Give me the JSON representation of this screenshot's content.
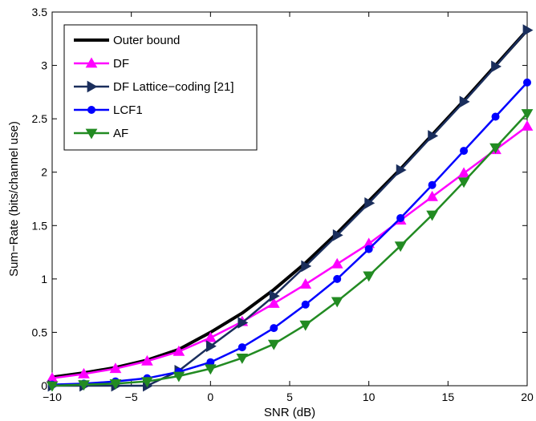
{
  "chart_data": {
    "type": "line",
    "xlabel": "SNR (dB)",
    "ylabel": "Sum−Rate (bits/channel use)",
    "xlim": [
      -10,
      20
    ],
    "ylim": [
      0,
      3.5
    ],
    "xticks": [
      -10,
      -5,
      0,
      5,
      10,
      15,
      20
    ],
    "xtick_labels": [
      "−10",
      "−5",
      "0",
      "5",
      "10",
      "15",
      "20"
    ],
    "yticks": [
      0,
      0.5,
      1,
      1.5,
      2,
      2.5,
      3,
      3.5
    ],
    "ytick_labels": [
      "0",
      "0.5",
      "1",
      "1.5",
      "2",
      "2.5",
      "3",
      "3.5"
    ],
    "grid": false,
    "legend_position": "top-left",
    "x": [
      -10,
      -8,
      -6,
      -4,
      -2,
      0,
      2,
      4,
      6,
      8,
      10,
      12,
      14,
      16,
      18,
      20
    ],
    "series": [
      {
        "name": "Outer bound",
        "color": "#000000",
        "marker": "none",
        "values": [
          0.08,
          0.12,
          0.17,
          0.24,
          0.34,
          0.5,
          0.68,
          0.9,
          1.15,
          1.43,
          1.73,
          2.03,
          2.35,
          2.67,
          3.0,
          3.33
        ]
      },
      {
        "name": "DF",
        "color": "#ff00ff",
        "marker": "triangle-up",
        "values": [
          0.07,
          0.11,
          0.16,
          0.23,
          0.32,
          0.45,
          0.6,
          0.77,
          0.95,
          1.14,
          1.33,
          1.55,
          1.77,
          1.99,
          2.21,
          2.43
        ]
      },
      {
        "name": "DF Lattice−coding [21]",
        "color": "#1a2e5c",
        "marker": "triangle-right",
        "values": [
          0.0,
          0.0,
          0.0,
          0.0,
          0.14,
          0.37,
          0.59,
          0.84,
          1.12,
          1.41,
          1.71,
          2.02,
          2.34,
          2.66,
          2.99,
          3.33
        ]
      },
      {
        "name": "LCF1",
        "color": "#0000ff",
        "marker": "circle",
        "values": [
          0.01,
          0.02,
          0.04,
          0.07,
          0.13,
          0.22,
          0.36,
          0.54,
          0.76,
          1.0,
          1.28,
          1.57,
          1.88,
          2.2,
          2.52,
          2.84
        ]
      },
      {
        "name": "AF",
        "color": "#228b22",
        "marker": "triangle-down",
        "values": [
          0.0,
          0.01,
          0.02,
          0.04,
          0.09,
          0.16,
          0.26,
          0.39,
          0.57,
          0.79,
          1.03,
          1.31,
          1.6,
          1.91,
          2.23,
          2.55
        ]
      }
    ]
  }
}
